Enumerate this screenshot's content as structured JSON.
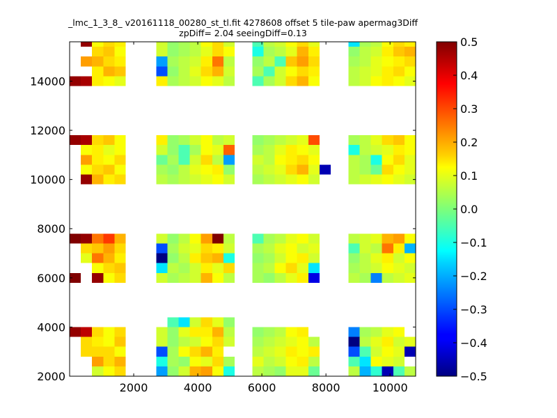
{
  "chart_data": {
    "type": "heatmap",
    "title": "_lmc_1_3_8_ v20161118_00280_st_tl.fit 4278608 offset 5 tile-paw apermag3Diff",
    "subtitle": "zpDiff= 2.04 seeingDiff=0.13",
    "xlabel": "",
    "ylabel": "",
    "xlim": [
      0,
      10800
    ],
    "ylim": [
      2000,
      15600
    ],
    "x_ticks": [
      2000,
      4000,
      6000,
      8000,
      10000
    ],
    "y_ticks": [
      2000,
      4000,
      6000,
      8000,
      10000,
      12000,
      14000
    ],
    "colorbar": {
      "colormap": "jet",
      "range": [
        -0.5,
        0.5
      ],
      "ticks": [
        -0.5,
        -0.4,
        -0.3,
        -0.2,
        -0.1,
        0.0,
        0.1,
        0.2,
        0.3,
        0.4,
        0.5
      ],
      "tick_labels": [
        "−0.5",
        "−0.4",
        "−0.3",
        "−0.2",
        "−0.1",
        "0.0",
        "0.1",
        "0.2",
        "0.3",
        "0.4",
        "0.5"
      ]
    },
    "cell_width": 350,
    "cell_height": 400,
    "columns_x": [
      0,
      350,
      700,
      1050,
      1400,
      1750,
      2700,
      3050,
      3400,
      3750,
      4100,
      4450,
      4800,
      5700,
      6050,
      6400,
      6750,
      7100,
      7450,
      7800,
      8700,
      9050,
      9400,
      9750,
      10100,
      10450
    ],
    "rows_y": [
      2000,
      2400,
      2800,
      3200,
      3600,
      4000,
      5800,
      6200,
      6600,
      7000,
      7400,
      7800,
      9800,
      10200,
      10600,
      11000,
      11400,
      11800,
      13800,
      14200,
      14600,
      15000,
      15400
    ],
    "grid": [
      [
        null,
        null,
        0.08,
        0.12,
        0.16,
        null,
        -0.22,
        0.02,
        0.08,
        0.2,
        0.22,
        0.12,
        -0.1,
        0.06,
        0.04,
        0.02,
        0.1,
        0.1,
        -0.02,
        null,
        0.06,
        -0.2,
        -0.08,
        -0.45,
        -0.05,
        0.06
      ],
      [
        null,
        null,
        0.22,
        0.16,
        0.2,
        null,
        -0.1,
        0.04,
        0.02,
        0.12,
        0.1,
        0.16,
        0.04,
        0.1,
        0.06,
        0.08,
        0.12,
        0.14,
        0.06,
        null,
        -0.05,
        -0.15,
        0.12,
        0.1,
        0.08,
        null
      ],
      [
        null,
        0.16,
        0.16,
        0.16,
        0.12,
        null,
        -0.3,
        0.04,
        0.12,
        0.16,
        0.2,
        0.14,
        null,
        0.06,
        0.08,
        0.1,
        0.14,
        0.12,
        0.14,
        null,
        -0.3,
        -0.05,
        0.08,
        0.12,
        0.1,
        -0.45
      ],
      [
        null,
        0.16,
        0.14,
        0.12,
        0.18,
        null,
        0.08,
        0.02,
        0.06,
        0.08,
        0.12,
        0.16,
        0.08,
        0.04,
        0.06,
        0.08,
        0.1,
        0.12,
        0.06,
        null,
        -0.5,
        0.06,
        0.1,
        0.14,
        0.08,
        0.1
      ],
      [
        0.48,
        0.44,
        0.16,
        0.12,
        0.16,
        null,
        0.08,
        0.02,
        0.1,
        0.14,
        0.14,
        0.2,
        0.06,
        0.02,
        0.04,
        0.06,
        0.12,
        0.14,
        null,
        null,
        -0.25,
        0.04,
        0.06,
        0.1,
        0.12,
        null
      ],
      [
        null,
        null,
        null,
        null,
        null,
        null,
        null,
        -0.05,
        -0.15,
        0.08,
        0.16,
        0.1,
        0.02,
        null,
        null,
        null,
        null,
        null,
        null,
        null,
        null,
        null,
        null,
        null,
        null,
        null
      ],
      [
        0.5,
        null,
        0.48,
        0.12,
        0.16,
        null,
        0.08,
        0.04,
        0.06,
        0.08,
        0.2,
        0.12,
        0.06,
        0.04,
        0.02,
        0.06,
        0.1,
        0.14,
        -0.4,
        null,
        0.06,
        0.04,
        -0.25,
        0.06,
        0.08,
        0.1
      ],
      [
        null,
        null,
        0.12,
        0.16,
        0.18,
        null,
        -0.15,
        0.06,
        0.04,
        0.08,
        0.14,
        0.1,
        0.16,
        0.04,
        0.06,
        0.12,
        0.16,
        0.1,
        -0.15,
        null,
        0.04,
        0.06,
        0.08,
        0.12,
        0.1,
        0.08
      ],
      [
        null,
        0.1,
        0.26,
        0.2,
        0.14,
        null,
        -0.5,
        0.02,
        0.06,
        0.14,
        0.18,
        0.2,
        -0.1,
        0.02,
        0.04,
        0.08,
        0.12,
        0.14,
        0.08,
        null,
        0.02,
        0.06,
        0.1,
        0.14,
        0.08,
        0.12
      ],
      [
        null,
        0.16,
        0.18,
        0.22,
        0.16,
        null,
        -0.3,
        0.04,
        0.08,
        0.1,
        0.16,
        0.14,
        0.08,
        0.04,
        0.06,
        0.1,
        0.12,
        0.08,
        0.1,
        null,
        -0.05,
        0.08,
        0.06,
        0.26,
        0.14,
        -0.2
      ],
      [
        0.5,
        0.48,
        0.26,
        0.32,
        0.2,
        null,
        0.08,
        0.02,
        0.06,
        0.12,
        0.22,
        0.5,
        0.06,
        -0.05,
        0.04,
        0.06,
        0.1,
        0.12,
        0.08,
        null,
        0.06,
        0.08,
        0.1,
        0.2,
        0.22,
        0.12
      ],
      [
        null,
        null,
        null,
        null,
        null,
        null,
        null,
        null,
        null,
        null,
        null,
        null,
        null,
        null,
        null,
        null,
        null,
        null,
        null,
        null,
        null,
        null,
        null,
        null,
        null,
        null
      ],
      [
        null,
        0.48,
        0.2,
        0.14,
        0.16,
        null,
        0.06,
        0.04,
        0.06,
        0.08,
        0.1,
        0.12,
        0.08,
        0.04,
        0.06,
        0.08,
        0.1,
        0.12,
        0.08,
        null,
        0.06,
        0.08,
        0.1,
        0.12,
        0.1,
        0.08
      ],
      [
        null,
        0.12,
        0.16,
        0.18,
        0.12,
        null,
        0.04,
        0.02,
        0.06,
        0.1,
        0.12,
        0.14,
        0.02,
        0.06,
        0.08,
        0.1,
        0.16,
        0.2,
        0.1,
        -0.45,
        0.06,
        0.04,
        -0.02,
        0.16,
        0.12,
        0.1
      ],
      [
        null,
        0.22,
        0.14,
        0.12,
        0.16,
        null,
        -0.02,
        0.04,
        -0.05,
        0.08,
        0.16,
        0.06,
        -0.22,
        0.08,
        0.06,
        0.12,
        0.14,
        0.16,
        0.12,
        null,
        0.06,
        0.04,
        -0.1,
        0.12,
        0.16,
        0.1
      ],
      [
        null,
        0.12,
        0.14,
        0.1,
        0.12,
        null,
        0.08,
        0.02,
        -0.05,
        0.04,
        0.12,
        0.1,
        0.28,
        0.04,
        0.06,
        0.1,
        0.14,
        0.12,
        0.1,
        null,
        -0.1,
        0.06,
        0.08,
        0.1,
        0.14,
        0.12
      ],
      [
        0.48,
        0.46,
        0.16,
        0.18,
        0.12,
        null,
        0.14,
        0.02,
        0.04,
        0.08,
        0.12,
        0.06,
        0.08,
        0.02,
        0.04,
        0.06,
        0.08,
        0.1,
        0.3,
        null,
        0.04,
        0.06,
        0.1,
        0.16,
        0.18,
        0.12
      ],
      [
        null,
        null,
        null,
        null,
        null,
        null,
        null,
        null,
        null,
        null,
        null,
        null,
        null,
        null,
        null,
        null,
        null,
        null,
        null,
        null,
        null,
        null,
        null,
        null,
        null,
        null
      ],
      [
        0.48,
        0.46,
        0.14,
        0.12,
        0.1,
        null,
        0.14,
        0.04,
        0.06,
        0.08,
        0.12,
        0.1,
        0.06,
        -0.05,
        0.04,
        0.08,
        0.16,
        0.2,
        0.12,
        null,
        0.06,
        0.08,
        0.12,
        0.14,
        0.12,
        0.1
      ],
      [
        null,
        null,
        0.14,
        0.2,
        0.18,
        null,
        -0.3,
        0.02,
        0.06,
        0.1,
        0.16,
        0.2,
        0.08,
        0.04,
        -0.05,
        0.08,
        0.12,
        0.16,
        0.14,
        null,
        0.06,
        0.08,
        0.1,
        0.14,
        0.16,
        0.12
      ],
      [
        null,
        0.22,
        0.2,
        0.16,
        0.14,
        null,
        -0.22,
        0.04,
        0.06,
        0.08,
        0.14,
        0.26,
        0.06,
        0.02,
        0.06,
        -0.05,
        0.18,
        0.22,
        0.16,
        null,
        0.04,
        0.06,
        0.1,
        0.12,
        0.14,
        0.16
      ],
      [
        null,
        null,
        0.16,
        0.18,
        0.12,
        null,
        0.08,
        0.02,
        0.04,
        0.06,
        0.1,
        0.16,
        0.12,
        -0.1,
        0.04,
        0.06,
        0.1,
        0.2,
        0.14,
        null,
        0.02,
        0.06,
        0.08,
        0.14,
        0.18,
        0.2
      ],
      [
        null,
        0.48,
        0.12,
        0.16,
        0.14,
        null,
        0.08,
        0.02,
        0.04,
        0.06,
        0.12,
        0.16,
        0.08,
        -0.05,
        0.06,
        0.08,
        0.12,
        0.16,
        0.1,
        null,
        -0.15,
        0.04,
        0.06,
        0.12,
        0.16,
        0.14
      ]
    ]
  }
}
